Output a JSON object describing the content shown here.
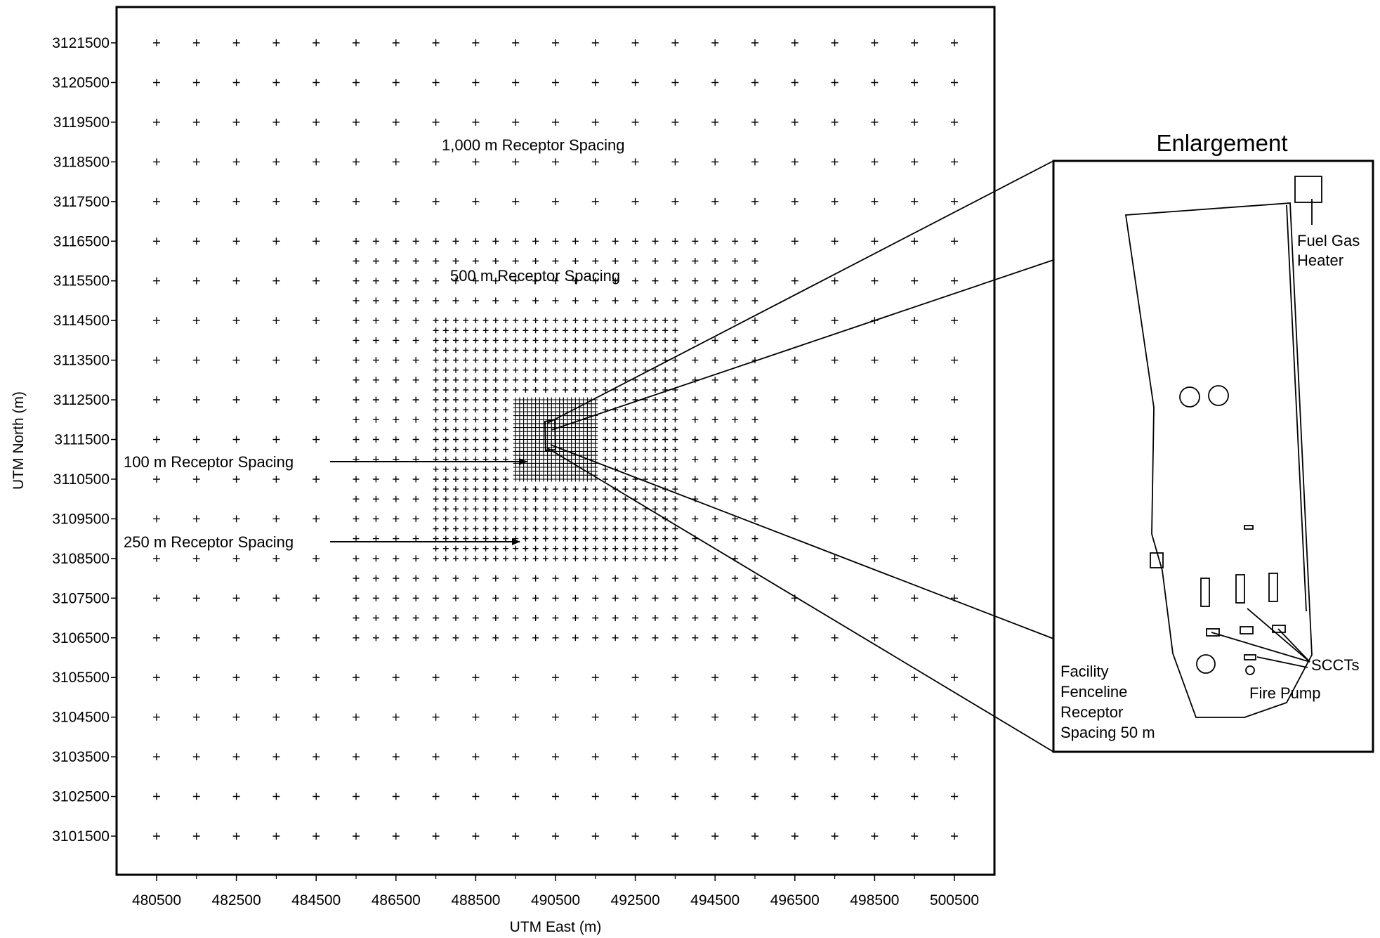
{
  "chart_data": {
    "type": "scatter",
    "title": "",
    "xlabel": "UTM East (m)",
    "ylabel": "UTM North (m)",
    "xlim": [
      479500,
      501500
    ],
    "ylim": [
      3100500,
      3122500
    ],
    "x_ticks": [
      "480500",
      "482500",
      "484500",
      "486500",
      "488500",
      "490500",
      "492500",
      "494500",
      "496500",
      "498500",
      "500500"
    ],
    "y_ticks": [
      "3121500",
      "3120500",
      "3119500",
      "3118500",
      "3117500",
      "3116500",
      "3115500",
      "3114500",
      "3113500",
      "3112500",
      "3111500",
      "3110500",
      "3109500",
      "3108500",
      "3107500",
      "3106500",
      "3105500",
      "3104500",
      "3103500",
      "3102500",
      "3101500"
    ],
    "series": [
      {
        "name": "1,000 m Receptor Spacing",
        "spacing_m": 1000,
        "x_range": [
          480500,
          500500
        ],
        "y_range": [
          3101500,
          3121500
        ]
      },
      {
        "name": "500 m Receptor Spacing",
        "spacing_m": 500,
        "x_range": [
          485500,
          495500
        ],
        "y_range": [
          3106500,
          3116500
        ]
      },
      {
        "name": "250 m Receptor Spacing",
        "spacing_m": 250,
        "x_range": [
          487500,
          493500
        ],
        "y_range": [
          3108500,
          3114500
        ]
      },
      {
        "name": "100 m Receptor Spacing",
        "spacing_m": 100,
        "x_range": [
          489500,
          491500
        ],
        "y_range": [
          3110500,
          3112500
        ]
      }
    ]
  },
  "annotations": {
    "spacing_1000": "1,000 m Receptor Spacing",
    "spacing_500": "500 m Receptor Spacing",
    "spacing_100": "100 m Receptor Spacing",
    "spacing_250": "250 m Receptor Spacing"
  },
  "enlargement": {
    "title": "Enlargement",
    "fuel_gas_heater_line1": "Fuel Gas",
    "fuel_gas_heater_line2": "Heater",
    "scct_label": "SCCTs",
    "fire_pump_label": "Fire Pump",
    "fenceline_line1": "Facility",
    "fenceline_line2": "Fenceline",
    "fenceline_line3": "Receptor",
    "fenceline_line4": "Spacing 50 m"
  },
  "colors": {
    "ink": "#000000",
    "background": "#ffffff"
  }
}
